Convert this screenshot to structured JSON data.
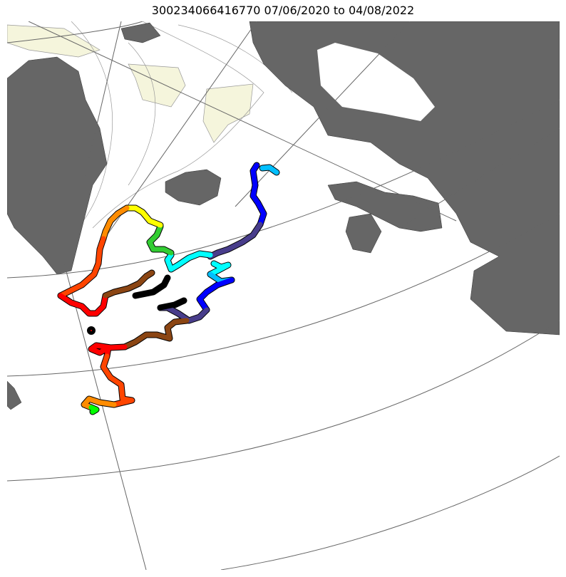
{
  "title": "300234066416770  07/06/2020 to 04/08/2022",
  "map": {
    "land_color": "#666666",
    "shelf_color": "#f5f5dc",
    "contour_color": "#999999",
    "grid_color": "#666666"
  },
  "track_colors": [
    "#00bfff",
    "#0000ff",
    "#483d8b",
    "#00ffff",
    "#32cd32",
    "#ffff00",
    "#ff8c00",
    "#ff4500",
    "#ff0000",
    "#8b4513",
    "#000000",
    "#00ff00"
  ]
}
